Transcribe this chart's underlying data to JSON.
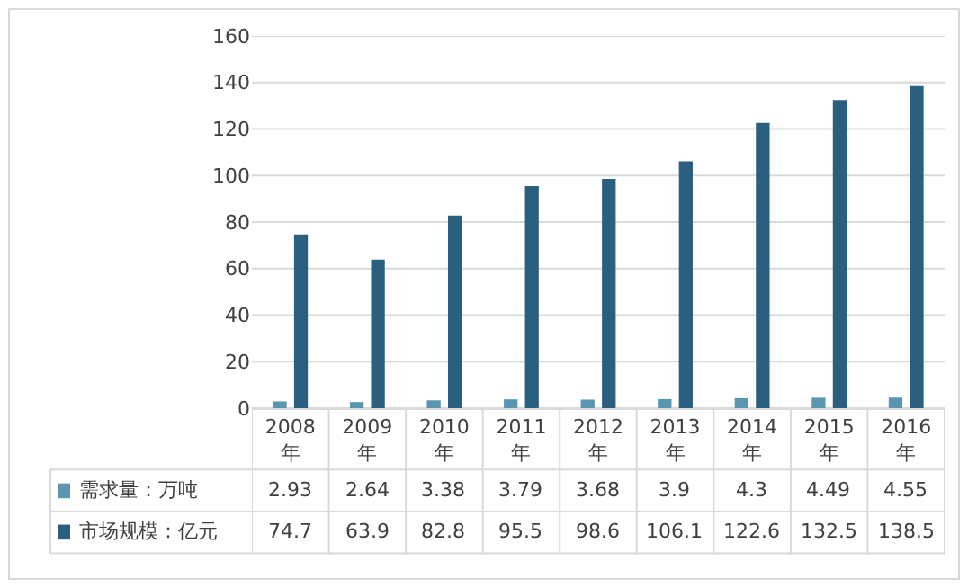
{
  "chart_data": {
    "type": "bar",
    "categories": [
      "2008年",
      "2009年",
      "2010年",
      "2011年",
      "2012年",
      "2013年",
      "2014年",
      "2015年",
      "2016年"
    ],
    "series": [
      {
        "name": "需求量：万吨",
        "color": "#5b96b0",
        "values": [
          2.93,
          2.64,
          3.38,
          3.79,
          3.68,
          3.9,
          4.3,
          4.49,
          4.55
        ]
      },
      {
        "name": "市场规模：亿元",
        "color": "#2b5f80",
        "values": [
          74.7,
          63.9,
          82.8,
          95.5,
          98.6,
          106.1,
          122.6,
          132.5,
          138.5
        ]
      }
    ],
    "ylim": [
      0,
      160
    ],
    "yticks": [
      0,
      20,
      40,
      60,
      80,
      100,
      120,
      140,
      160
    ],
    "grid": "y",
    "legend": "bottom left",
    "data_labels": true
  }
}
